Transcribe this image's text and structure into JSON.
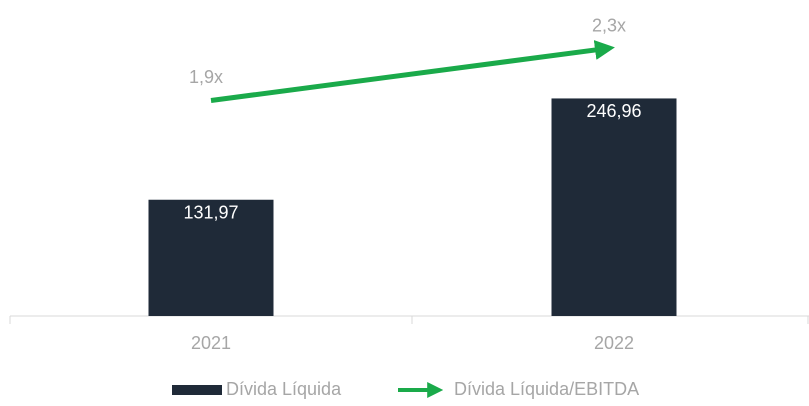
{
  "chart_data": {
    "type": "combo",
    "categories": [
      "2021",
      "2022"
    ],
    "series": [
      {
        "name": "Dívida Líquida",
        "type": "bar",
        "color": "#1f2a38",
        "values": [
          131.97,
          246.96
        ],
        "value_labels": [
          "131,97",
          "246,96"
        ]
      },
      {
        "name": "Dívida Líquida/EBITDA",
        "type": "line",
        "axis": "y2",
        "color": "#1aaa4a",
        "values": [
          1.9,
          2.3
        ],
        "value_labels": [
          "1,9x",
          "2,3x"
        ]
      }
    ],
    "ylim": [
      0,
      336
    ],
    "y2lim": [
      0.24,
      2.52
    ],
    "legend": "bottom"
  }
}
